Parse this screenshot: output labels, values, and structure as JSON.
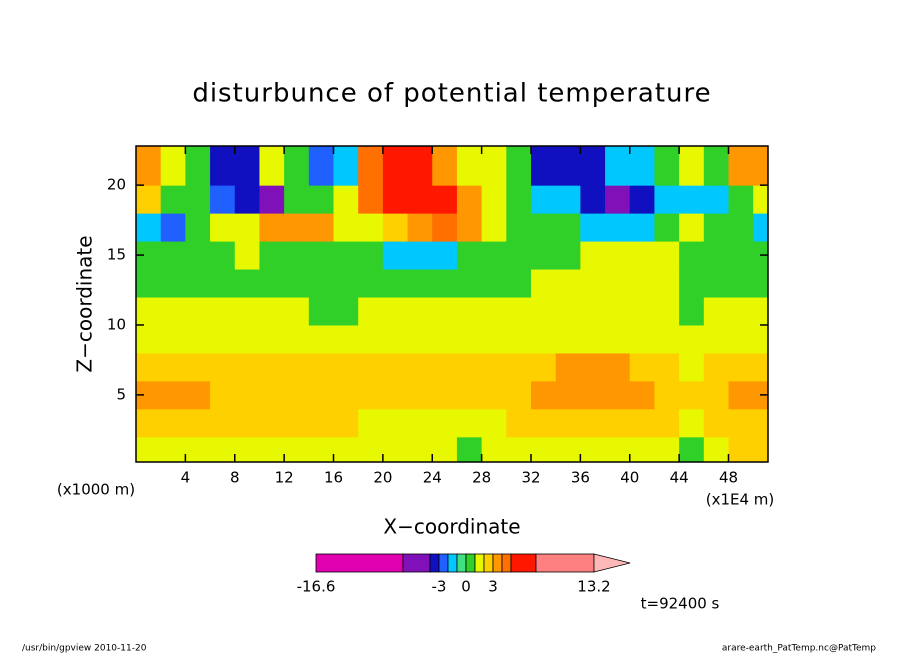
{
  "chart_data": {
    "type": "contour",
    "title": "disturbunce of potential temperature",
    "x_label": "X−coordinate",
    "y_label": "Z−coordinate",
    "x_unit_left": "(x1000 m)",
    "x_unit_right": "(x1E4 m)",
    "time_label": "t=92400 s",
    "xlim": [
      0,
      51.2
    ],
    "ylim": [
      0.2,
      22.8
    ],
    "xticks": [
      4,
      8,
      12,
      16,
      20,
      24,
      28,
      32,
      36,
      40,
      44,
      48
    ],
    "yticks": [
      5,
      10,
      15,
      20
    ],
    "x": [
      1,
      3,
      5,
      7,
      9,
      11,
      13,
      15,
      17,
      19,
      21,
      23,
      25,
      27,
      29,
      31,
      33,
      35,
      37,
      39,
      41,
      43,
      45,
      47,
      49,
      51
    ],
    "y": [
      1,
      3,
      5,
      7,
      9,
      11,
      13,
      15,
      17,
      19,
      21
    ],
    "values": [
      [
        1.5,
        1.5,
        1.5,
        1.5,
        1.5,
        1.5,
        1.5,
        1.5,
        1.5,
        1.5,
        1.5,
        1.5,
        1.5,
        0.5,
        1.5,
        1.5,
        1.5,
        1.5,
        1.5,
        1.5,
        1.5,
        1.5,
        0.8,
        1.5,
        2.2,
        2.2
      ],
      [
        2.5,
        2.5,
        2.5,
        2.5,
        2.4,
        2.4,
        2.4,
        2.3,
        2.2,
        1.8,
        1.8,
        1.7,
        1.7,
        1.6,
        1.8,
        2.2,
        2.4,
        2.6,
        2.6,
        2.6,
        2.6,
        2.5,
        1.5,
        2.3,
        2.5,
        2.5
      ],
      [
        3.3,
        3.3,
        3.2,
        2.7,
        2.6,
        2.6,
        2.6,
        2.6,
        2.6,
        2.6,
        2.6,
        2.6,
        2.6,
        2.6,
        2.6,
        2.6,
        3.2,
        3.4,
        3.4,
        3.3,
        3.3,
        2.6,
        2.2,
        2.6,
        3.3,
        3.3
      ],
      [
        2.4,
        2.4,
        2.3,
        2.3,
        2.3,
        2.3,
        2.3,
        2.3,
        2.3,
        2.3,
        2.3,
        2.3,
        2.3,
        2.3,
        2.3,
        2.3,
        2.4,
        3.1,
        3.2,
        3.1,
        2.6,
        2.3,
        1.8,
        2.3,
        2.4,
        2.4
      ],
      [
        1.7,
        1.7,
        1.7,
        1.7,
        1.7,
        1.7,
        1.7,
        1.7,
        1.7,
        1.7,
        1.7,
        1.7,
        1.7,
        1.7,
        1.7,
        1.7,
        1.7,
        1.7,
        1.7,
        1.7,
        1.7,
        1.7,
        1.2,
        1.7,
        1.7,
        1.7
      ],
      [
        1.4,
        1.4,
        1.4,
        1.4,
        1.4,
        1.4,
        1.4,
        0.8,
        0.8,
        1.3,
        1.3,
        1.3,
        1.3,
        1.3,
        1.3,
        1.3,
        1.3,
        1.3,
        1.3,
        1.3,
        1.3,
        1.2,
        0.8,
        1.3,
        1.3,
        1.3
      ],
      [
        0.8,
        0.8,
        0.6,
        0.6,
        0.6,
        0.6,
        0.6,
        0.6,
        0.6,
        0.6,
        0.6,
        0.6,
        0.6,
        0.6,
        0.6,
        0.6,
        1.3,
        1.3,
        1.3,
        1.3,
        1.3,
        1.3,
        0.6,
        0.6,
        0.6,
        0.6
      ],
      [
        0.5,
        0.5,
        0.5,
        0.5,
        1.3,
        0.5,
        0.5,
        0.5,
        0.5,
        0.5,
        -1.5,
        -1.5,
        -1.2,
        0.5,
        0.5,
        0.5,
        0.5,
        0.5,
        1.2,
        1.2,
        1.2,
        1.2,
        0.5,
        0.5,
        0.5,
        0.5
      ],
      [
        -1.5,
        -2.5,
        0.5,
        1.4,
        1.4,
        3.2,
        3.2,
        3.0,
        1.4,
        1.4,
        2.5,
        3.5,
        4.5,
        3.5,
        1.5,
        0.5,
        0.5,
        0.5,
        -1.5,
        -1.5,
        -1.5,
        0.5,
        1.4,
        0.5,
        0.5,
        -1.5
      ],
      [
        2.5,
        0.5,
        0.5,
        -2.5,
        -3.5,
        -4.5,
        0.5,
        0.5,
        1.5,
        4.0,
        6.5,
        6.5,
        5.5,
        3.5,
        1.5,
        0.5,
        -1.5,
        -1.5,
        -3.5,
        -4.5,
        -3.5,
        -1.5,
        -1.5,
        -1.5,
        0.5,
        1.5
      ],
      [
        3.5,
        1.5,
        0.5,
        -3.3,
        -3.3,
        1.5,
        0.5,
        -3.0,
        -1.5,
        4.5,
        7.0,
        6.0,
        3.5,
        1.5,
        1.5,
        0.5,
        -3.5,
        -3.5,
        -3.5,
        -1.5,
        -1.5,
        0.5,
        1.5,
        0.5,
        3.5,
        3.5
      ]
    ],
    "colorbar": {
      "levels": [
        -16.6,
        -6,
        -4,
        -3,
        -2,
        -1,
        0,
        1,
        2,
        3,
        4,
        5,
        8,
        13.2
      ],
      "colors": [
        "#e000b0",
        "#8010b8",
        "#1010c0",
        "#2060ff",
        "#00c8ff",
        "#40e080",
        "#30d028",
        "#e8f800",
        "#ffd000",
        "#ff9800",
        "#ff7000",
        "#ff1800",
        "#ff8080"
      ],
      "extend_color": "#ffb8b8",
      "ticks": [
        -16.6,
        -3,
        0,
        3,
        13.2
      ]
    }
  },
  "footer": {
    "left": "/usr/bin/gpview   2010-11-20",
    "right": "arare-earth_PatTemp.nc@PatTemp"
  }
}
